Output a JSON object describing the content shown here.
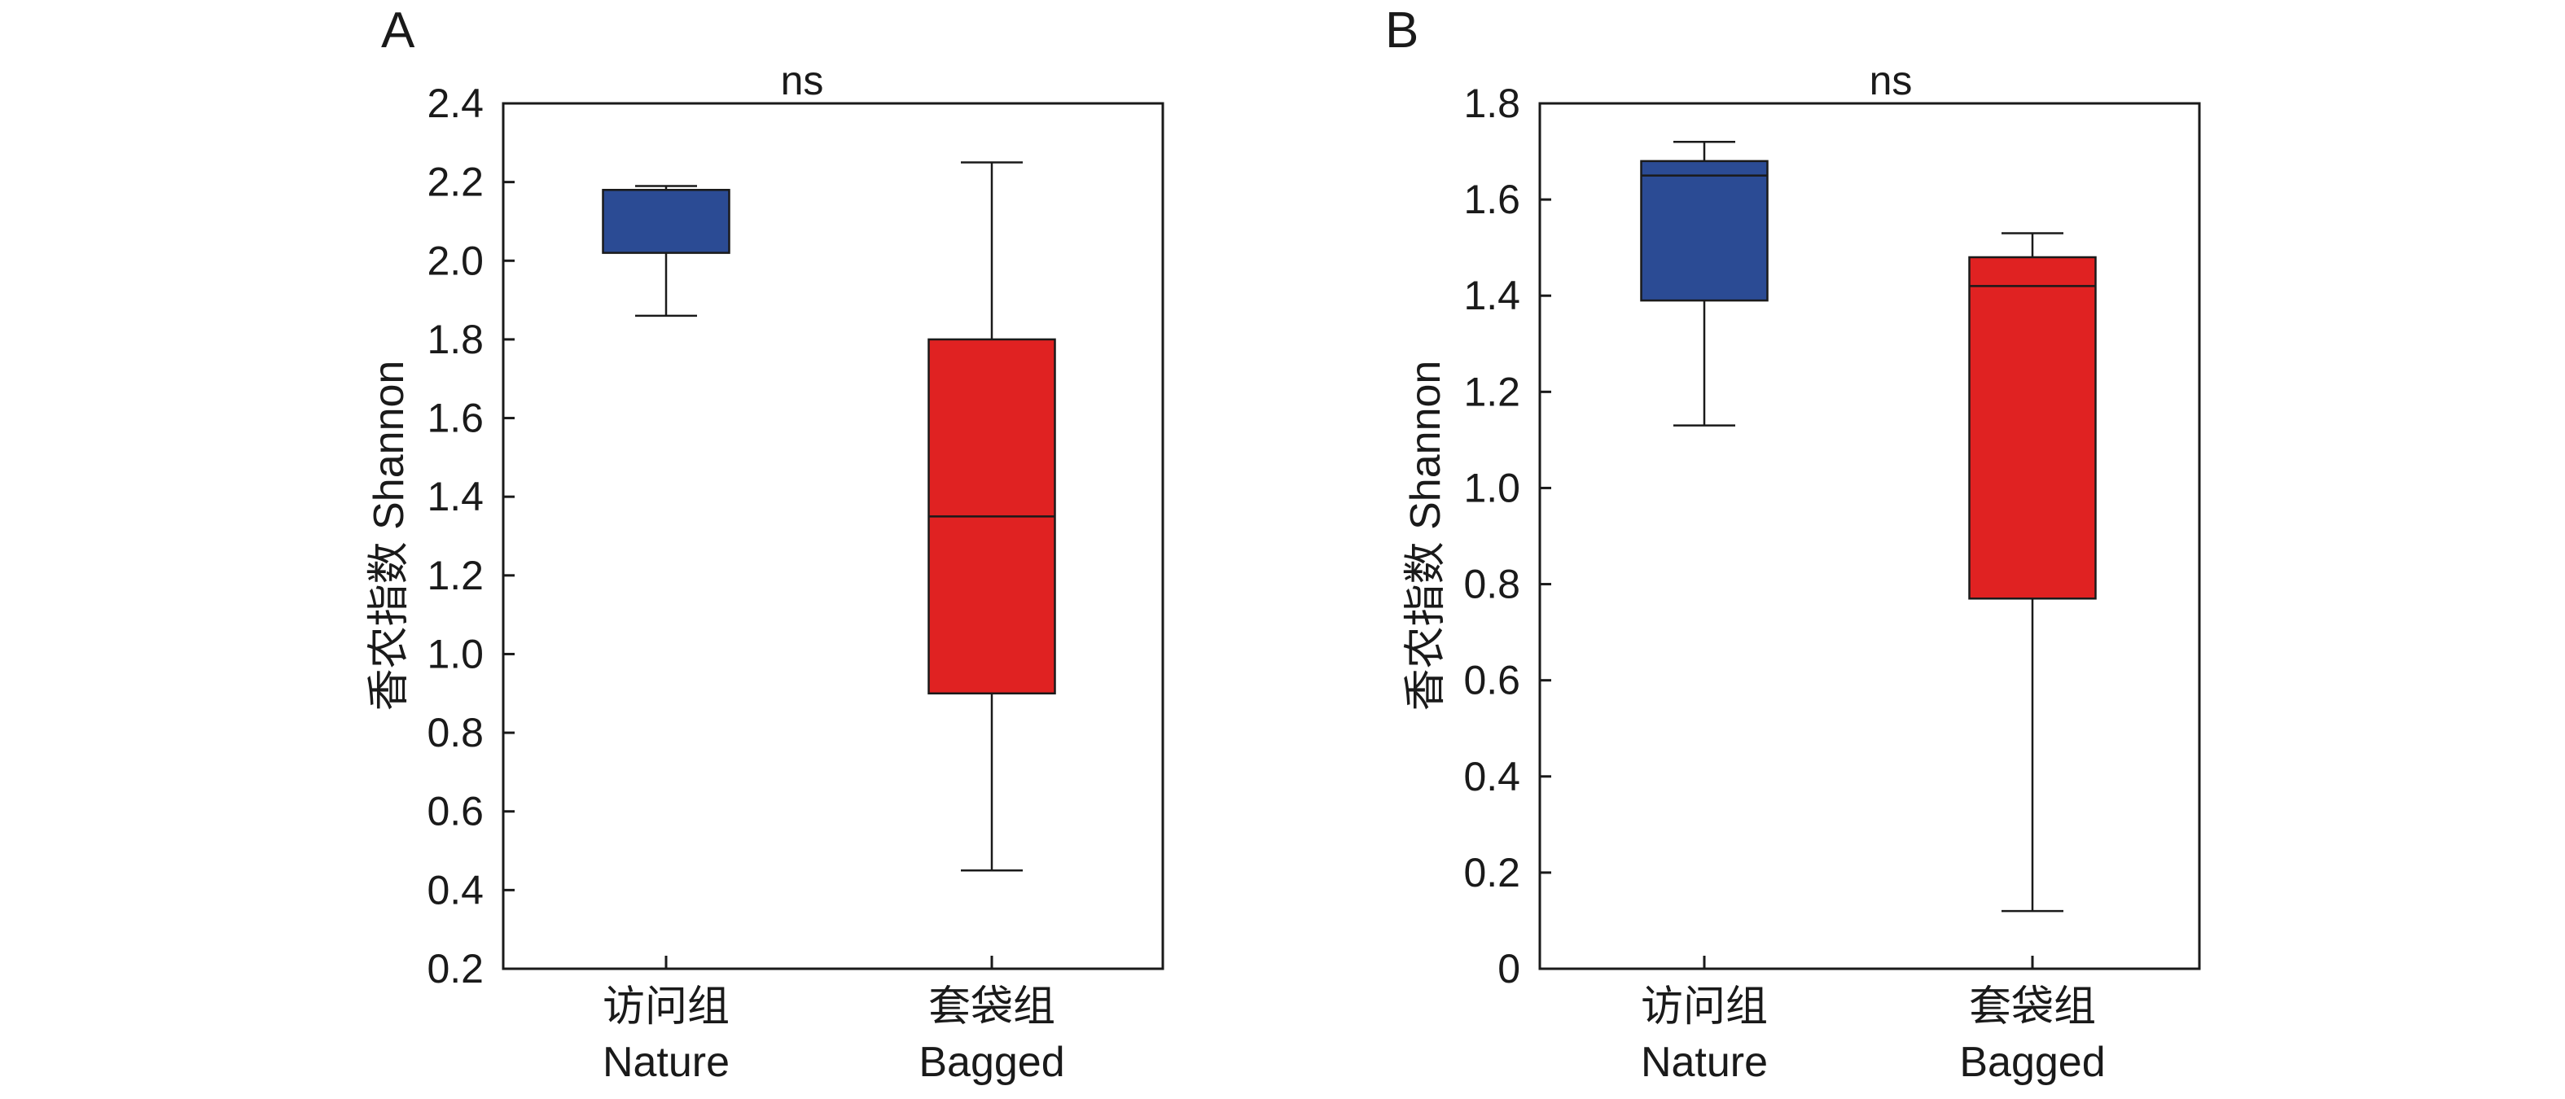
{
  "figure": {
    "panel_labels": [
      "A",
      "B"
    ]
  },
  "chart_data": [
    {
      "type": "box",
      "panel": "A",
      "ylabel": "香农指数 Shannon",
      "annotation": "ns",
      "ylim": [
        0.2,
        2.4
      ],
      "yticks": [
        "0.2",
        "0.4",
        "0.6",
        "0.8",
        "1.0",
        "1.2",
        "1.4",
        "1.6",
        "1.8",
        "2.0",
        "2.2",
        "2.4"
      ],
      "categories": [
        {
          "label_cn": "访问组",
          "label_en": "Nature",
          "color": "#2b4b94",
          "min": 1.86,
          "q1": 2.02,
          "median": 2.18,
          "q3": 2.18,
          "max": 2.19
        },
        {
          "label_cn": "套袋组",
          "label_en": "Bagged",
          "color": "#e02222",
          "min": 0.45,
          "q1": 0.9,
          "median": 1.35,
          "q3": 1.8,
          "max": 2.25
        }
      ]
    },
    {
      "type": "box",
      "panel": "B",
      "ylabel": "香农指数 Shannon",
      "annotation": "ns",
      "ylim": [
        0,
        1.8
      ],
      "yticks": [
        "0",
        "0.2",
        "0.4",
        "0.6",
        "0.8",
        "1.0",
        "1.2",
        "1.4",
        "1.6",
        "1.8"
      ],
      "categories": [
        {
          "label_cn": "访问组",
          "label_en": "Nature",
          "color": "#2b4b94",
          "min": 1.13,
          "q1": 1.39,
          "median": 1.65,
          "q3": 1.68,
          "max": 1.72
        },
        {
          "label_cn": "套袋组",
          "label_en": "Bagged",
          "color": "#e02222",
          "min": 0.12,
          "q1": 0.77,
          "median": 1.42,
          "q3": 1.48,
          "max": 1.53
        }
      ]
    }
  ]
}
